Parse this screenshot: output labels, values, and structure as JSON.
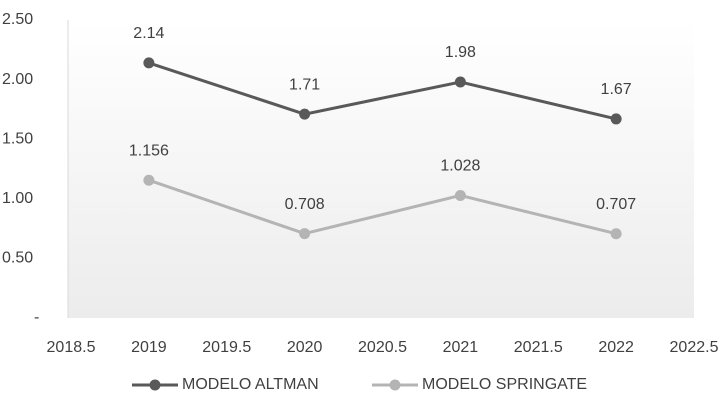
{
  "chart_data": {
    "type": "line",
    "x": [
      2019,
      2020,
      2021,
      2022
    ],
    "series": [
      {
        "name": "MODELO ALTMAN",
        "color": "#595959",
        "values": [
          2.14,
          1.71,
          1.98,
          1.67
        ]
      },
      {
        "name": "MODELO SPRINGATE",
        "color": "#b4b4b4",
        "values": [
          1.156,
          0.708,
          1.028,
          0.707
        ]
      }
    ],
    "xlim": [
      2018.5,
      2022.5
    ],
    "xticks": [
      2018.5,
      2019,
      2019.5,
      2020,
      2020.5,
      2021,
      2021.5,
      2022,
      2022.5
    ],
    "ylim": [
      0,
      2.5
    ],
    "yticks": [
      {
        "value": 0,
        "label": "-"
      },
      {
        "value": 0.5,
        "label": "0.50"
      },
      {
        "value": 1,
        "label": "1.00"
      },
      {
        "value": 1.5,
        "label": "1.50"
      },
      {
        "value": 2,
        "label": "2.00"
      },
      {
        "value": 2.5,
        "label": "2.50"
      }
    ],
    "grid": false,
    "legend": "bottom"
  }
}
